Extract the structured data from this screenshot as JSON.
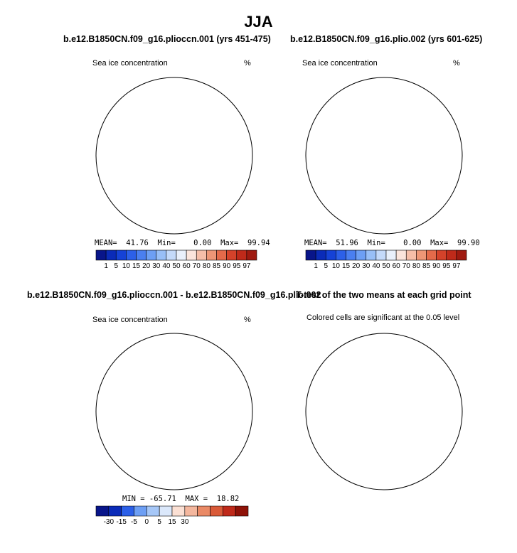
{
  "suptitle": "JJA",
  "panels": {
    "p1": {
      "title": "b.e12.B1850CN.f09_g16.pliocc​n.001 (yrs 451-475)",
      "left_label": "Sea ice concentration",
      "right_label": "%",
      "stats": {
        "mean_label": "MEAN=",
        "mean": "41.76",
        "min_label": "Min=",
        "min": "0.00",
        "max_label": "Max=",
        "max": "99.94"
      }
    },
    "p2": {
      "title": "b.e12.B1850CN.f09_g16.plio.002 (yrs 601-625)",
      "left_label": "Sea ice concentration",
      "right_label": "%",
      "stats": {
        "mean_label": "MEAN=",
        "mean": "51.96",
        "min_label": "Min=",
        "min": "0.00",
        "max_label": "Max=",
        "max": "99.90"
      }
    },
    "p3": {
      "title": "b.e12.B1850CN.f09_g16.pliocc​n.001 - b.e12.B1850CN.f09_g16.plio.002",
      "left_label": "Sea ice concentration",
      "right_label": "%",
      "stats_text": "MIN = -65.71  MAX =  18.82"
    },
    "p4": {
      "title": "T-test of the two means at each grid point",
      "subtitle": "Colored cells are significant at the 0.05 level"
    }
  },
  "colorbars": {
    "abs": {
      "labels": [
        "1",
        "5",
        "10",
        "15",
        "20",
        "30",
        "40",
        "50",
        "60",
        "70",
        "80",
        "85",
        "90",
        "95",
        "97"
      ],
      "colors": [
        "#08158a",
        "#0a2bb8",
        "#1542d6",
        "#2c60e8",
        "#4a7ff0",
        "#6d9ff4",
        "#98bff7",
        "#c4dafa",
        "#e9f0fb",
        "#fbe5dc",
        "#f6bea8",
        "#ee9676",
        "#e46a4a",
        "#d4422a",
        "#bf2a1a",
        "#9f1a10"
      ]
    },
    "diff": {
      "labels": [
        "-30",
        "-15",
        "-5",
        "0",
        "5",
        "15",
        "30"
      ],
      "colors": [
        "#08158a",
        "#0a2bb8",
        "#2c60e8",
        "#6d9ff4",
        "#a6c7f7",
        "#dbe8fb",
        "#fbe0d4",
        "#f4b79e",
        "#ea8a66",
        "#d95a38",
        "#bf2a1a",
        "#8e1208"
      ]
    },
    "ttest_color": "#f77b45"
  }
}
